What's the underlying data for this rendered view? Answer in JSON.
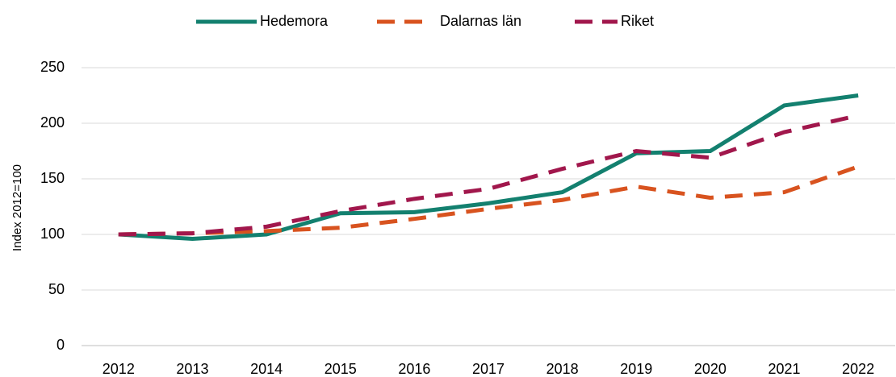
{
  "chart_data": {
    "type": "line",
    "y_label": "Index 2012=100",
    "categories": [
      "2012",
      "2013",
      "2014",
      "2015",
      "2016",
      "2017",
      "2018",
      "2019",
      "2020",
      "2021",
      "2022"
    ],
    "series": [
      {
        "name": "Hedemora",
        "color": "#13806f",
        "dash": "solid",
        "values": [
          100,
          96,
          100,
          119,
          120,
          128,
          138,
          173,
          175,
          216,
          225
        ]
      },
      {
        "name": "Dalarnas län",
        "color": "#d8531f",
        "dash": "dashed",
        "values": [
          100,
          101,
          103,
          106,
          114,
          123,
          131,
          143,
          133,
          138,
          161
        ]
      },
      {
        "name": "Riket",
        "color": "#a1174c",
        "dash": "dashed",
        "values": [
          100,
          101,
          107,
          121,
          132,
          141,
          159,
          175,
          169,
          192,
          207
        ]
      }
    ],
    "ylim": [
      0,
      250
    ],
    "yticks": [
      0,
      50,
      100,
      150,
      200,
      250
    ],
    "grid": true,
    "legend": "top"
  }
}
